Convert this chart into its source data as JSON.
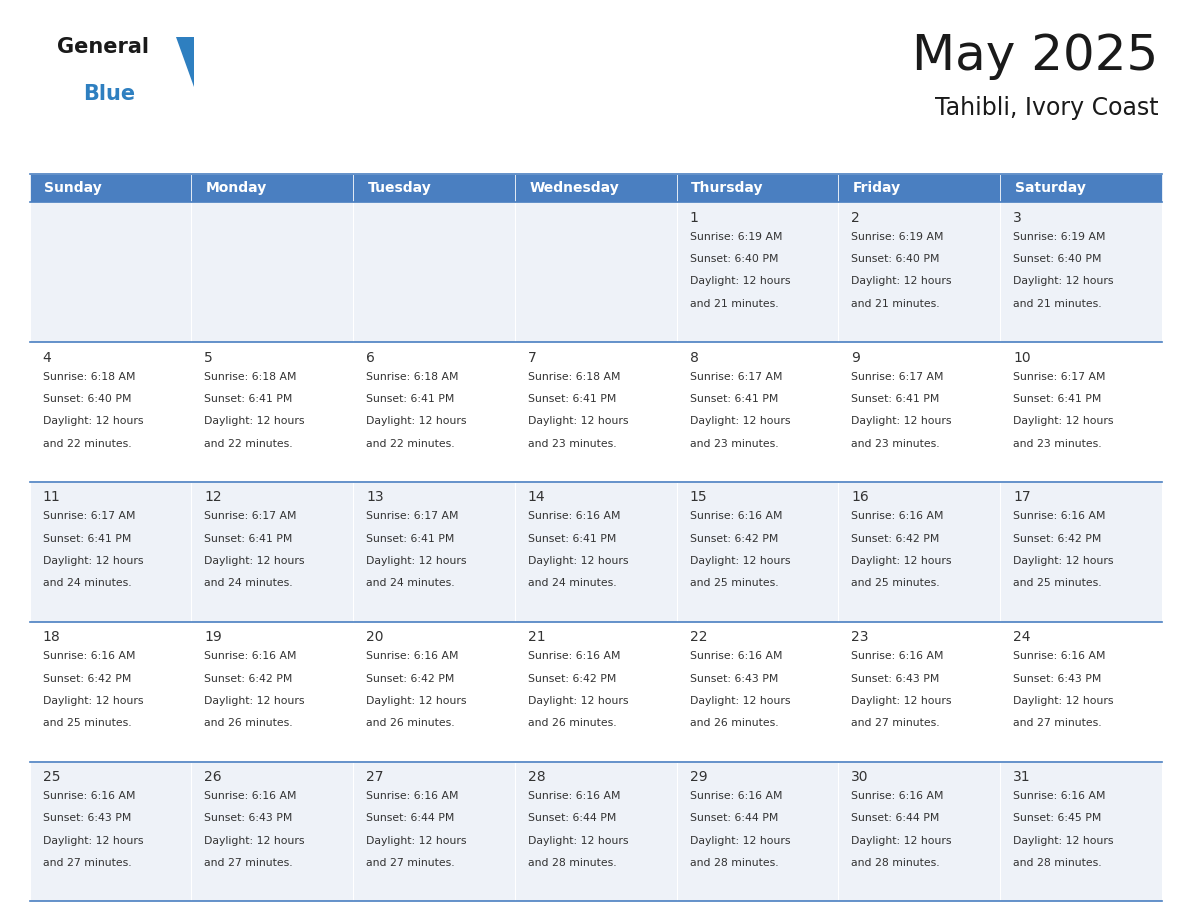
{
  "title": "May 2025",
  "subtitle": "Tahibli, Ivory Coast",
  "header_color": "#4a7fc1",
  "header_text_color": "#FFFFFF",
  "day_names": [
    "Sunday",
    "Monday",
    "Tuesday",
    "Wednesday",
    "Thursday",
    "Friday",
    "Saturday"
  ],
  "background_color": "#FFFFFF",
  "cell_bg_even": "#eef2f8",
  "cell_bg_odd": "#FFFFFF",
  "text_color": "#333333",
  "grid_color": "#4a7fc1",
  "logo_black": "#1a1a1a",
  "logo_blue": "#2e7fc0",
  "logo_triangle": "#2e7fc0",
  "title_fontsize": 36,
  "subtitle_fontsize": 17,
  "header_fontsize": 10,
  "date_fontsize": 10,
  "info_fontsize": 7.8,
  "days": [
    {
      "date": 1,
      "col": 4,
      "row": 0,
      "sunrise": "6:19 AM",
      "sunset": "6:40 PM",
      "daylight": "12 hours and 21 minutes."
    },
    {
      "date": 2,
      "col": 5,
      "row": 0,
      "sunrise": "6:19 AM",
      "sunset": "6:40 PM",
      "daylight": "12 hours and 21 minutes."
    },
    {
      "date": 3,
      "col": 6,
      "row": 0,
      "sunrise": "6:19 AM",
      "sunset": "6:40 PM",
      "daylight": "12 hours and 21 minutes."
    },
    {
      "date": 4,
      "col": 0,
      "row": 1,
      "sunrise": "6:18 AM",
      "sunset": "6:40 PM",
      "daylight": "12 hours and 22 minutes."
    },
    {
      "date": 5,
      "col": 1,
      "row": 1,
      "sunrise": "6:18 AM",
      "sunset": "6:41 PM",
      "daylight": "12 hours and 22 minutes."
    },
    {
      "date": 6,
      "col": 2,
      "row": 1,
      "sunrise": "6:18 AM",
      "sunset": "6:41 PM",
      "daylight": "12 hours and 22 minutes."
    },
    {
      "date": 7,
      "col": 3,
      "row": 1,
      "sunrise": "6:18 AM",
      "sunset": "6:41 PM",
      "daylight": "12 hours and 23 minutes."
    },
    {
      "date": 8,
      "col": 4,
      "row": 1,
      "sunrise": "6:17 AM",
      "sunset": "6:41 PM",
      "daylight": "12 hours and 23 minutes."
    },
    {
      "date": 9,
      "col": 5,
      "row": 1,
      "sunrise": "6:17 AM",
      "sunset": "6:41 PM",
      "daylight": "12 hours and 23 minutes."
    },
    {
      "date": 10,
      "col": 6,
      "row": 1,
      "sunrise": "6:17 AM",
      "sunset": "6:41 PM",
      "daylight": "12 hours and 23 minutes."
    },
    {
      "date": 11,
      "col": 0,
      "row": 2,
      "sunrise": "6:17 AM",
      "sunset": "6:41 PM",
      "daylight": "12 hours and 24 minutes."
    },
    {
      "date": 12,
      "col": 1,
      "row": 2,
      "sunrise": "6:17 AM",
      "sunset": "6:41 PM",
      "daylight": "12 hours and 24 minutes."
    },
    {
      "date": 13,
      "col": 2,
      "row": 2,
      "sunrise": "6:17 AM",
      "sunset": "6:41 PM",
      "daylight": "12 hours and 24 minutes."
    },
    {
      "date": 14,
      "col": 3,
      "row": 2,
      "sunrise": "6:16 AM",
      "sunset": "6:41 PM",
      "daylight": "12 hours and 24 minutes."
    },
    {
      "date": 15,
      "col": 4,
      "row": 2,
      "sunrise": "6:16 AM",
      "sunset": "6:42 PM",
      "daylight": "12 hours and 25 minutes."
    },
    {
      "date": 16,
      "col": 5,
      "row": 2,
      "sunrise": "6:16 AM",
      "sunset": "6:42 PM",
      "daylight": "12 hours and 25 minutes."
    },
    {
      "date": 17,
      "col": 6,
      "row": 2,
      "sunrise": "6:16 AM",
      "sunset": "6:42 PM",
      "daylight": "12 hours and 25 minutes."
    },
    {
      "date": 18,
      "col": 0,
      "row": 3,
      "sunrise": "6:16 AM",
      "sunset": "6:42 PM",
      "daylight": "12 hours and 25 minutes."
    },
    {
      "date": 19,
      "col": 1,
      "row": 3,
      "sunrise": "6:16 AM",
      "sunset": "6:42 PM",
      "daylight": "12 hours and 26 minutes."
    },
    {
      "date": 20,
      "col": 2,
      "row": 3,
      "sunrise": "6:16 AM",
      "sunset": "6:42 PM",
      "daylight": "12 hours and 26 minutes."
    },
    {
      "date": 21,
      "col": 3,
      "row": 3,
      "sunrise": "6:16 AM",
      "sunset": "6:42 PM",
      "daylight": "12 hours and 26 minutes."
    },
    {
      "date": 22,
      "col": 4,
      "row": 3,
      "sunrise": "6:16 AM",
      "sunset": "6:43 PM",
      "daylight": "12 hours and 26 minutes."
    },
    {
      "date": 23,
      "col": 5,
      "row": 3,
      "sunrise": "6:16 AM",
      "sunset": "6:43 PM",
      "daylight": "12 hours and 27 minutes."
    },
    {
      "date": 24,
      "col": 6,
      "row": 3,
      "sunrise": "6:16 AM",
      "sunset": "6:43 PM",
      "daylight": "12 hours and 27 minutes."
    },
    {
      "date": 25,
      "col": 0,
      "row": 4,
      "sunrise": "6:16 AM",
      "sunset": "6:43 PM",
      "daylight": "12 hours and 27 minutes."
    },
    {
      "date": 26,
      "col": 1,
      "row": 4,
      "sunrise": "6:16 AM",
      "sunset": "6:43 PM",
      "daylight": "12 hours and 27 minutes."
    },
    {
      "date": 27,
      "col": 2,
      "row": 4,
      "sunrise": "6:16 AM",
      "sunset": "6:44 PM",
      "daylight": "12 hours and 27 minutes."
    },
    {
      "date": 28,
      "col": 3,
      "row": 4,
      "sunrise": "6:16 AM",
      "sunset": "6:44 PM",
      "daylight": "12 hours and 28 minutes."
    },
    {
      "date": 29,
      "col": 4,
      "row": 4,
      "sunrise": "6:16 AM",
      "sunset": "6:44 PM",
      "daylight": "12 hours and 28 minutes."
    },
    {
      "date": 30,
      "col": 5,
      "row": 4,
      "sunrise": "6:16 AM",
      "sunset": "6:44 PM",
      "daylight": "12 hours and 28 minutes."
    },
    {
      "date": 31,
      "col": 6,
      "row": 4,
      "sunrise": "6:16 AM",
      "sunset": "6:45 PM",
      "daylight": "12 hours and 28 minutes."
    }
  ]
}
